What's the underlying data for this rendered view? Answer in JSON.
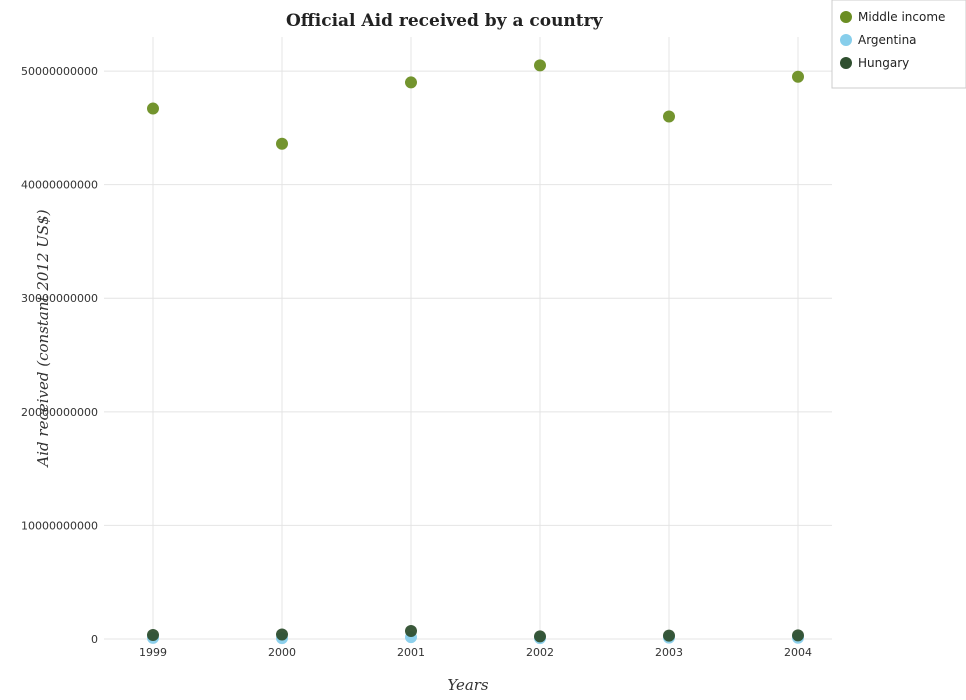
{
  "chart_data": {
    "type": "scatter",
    "title": "Official Aid received by a country",
    "xlabel": "Years",
    "ylabel": "Aid received (constant 2012 US$)",
    "categories": [
      "1999",
      "2000",
      "2001",
      "2002",
      "2003",
      "2004"
    ],
    "ylim": [
      0,
      53000000000
    ],
    "yticks": [
      0,
      10000000000,
      20000000000,
      30000000000,
      40000000000,
      50000000000
    ],
    "ytick_labels": [
      "0",
      "10000000000",
      "20000000000",
      "30000000000",
      "40000000000",
      "50000000000"
    ],
    "grid": true,
    "legend_position": "top-right",
    "series": [
      {
        "name": "Middle income",
        "color": "#6b8e23",
        "values": [
          46700000000,
          43600000000,
          49000000000,
          50500000000,
          46000000000,
          49500000000
        ]
      },
      {
        "name": "Argentina",
        "color": "#87ceeb",
        "values": [
          95000000,
          80000000,
          160000000,
          80000000,
          120000000,
          110000000
        ]
      },
      {
        "name": "Hungary",
        "color": "#2f4f2f",
        "values": [
          350000000,
          400000000,
          700000000,
          230000000,
          300000000,
          320000000
        ]
      }
    ]
  }
}
